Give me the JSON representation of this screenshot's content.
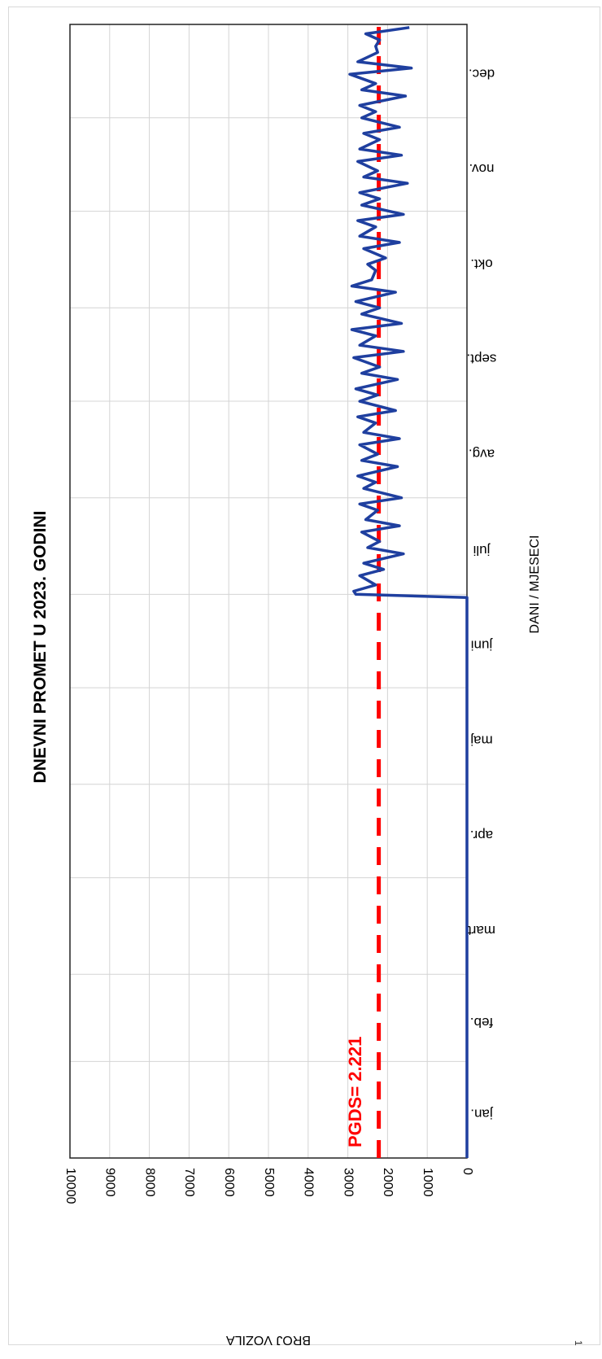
{
  "page": {
    "number": "1"
  },
  "chart_data": {
    "type": "line",
    "title": "DNEVNI PROMET U 2023. GODINI",
    "xlabel": "DANI / MJESECI",
    "ylabel": "BROJ VOZILA",
    "ylim": [
      0,
      10000
    ],
    "y_ticks": [
      "0",
      "1000",
      "2000",
      "3000",
      "4000",
      "5000",
      "6000",
      "7000",
      "8000",
      "9000",
      "10000"
    ],
    "x_ticks": [
      "jan.",
      "feb.",
      "mart",
      "apr.",
      "maj",
      "juni",
      "juli",
      "avg.",
      "sept.",
      "okt.",
      "nov.",
      "dec."
    ],
    "grid": true,
    "orientation": "page rotated 90 degrees clockwise",
    "reference_line": {
      "label": "PGDS= 2.221",
      "value": 2221,
      "color": "#ff0000",
      "style": "dashed"
    },
    "series": [
      {
        "color": "#1f3f9f",
        "x": [
          1,
          181,
          182,
          183,
          185,
          188,
          190,
          192,
          195,
          197,
          199,
          202,
          204,
          206,
          209,
          211,
          213,
          216,
          218,
          220,
          223,
          225,
          227,
          230,
          232,
          234,
          237,
          239,
          241,
          244,
          246,
          248,
          251,
          253,
          255,
          258,
          260,
          262,
          265,
          267,
          269,
          272,
          274,
          276,
          279,
          281,
          283,
          286,
          288,
          290,
          293,
          295,
          297,
          300,
          302,
          304,
          307,
          309,
          311,
          314,
          316,
          318,
          321,
          323,
          325,
          328,
          330,
          332,
          335,
          337,
          339,
          342,
          344,
          346,
          349,
          351,
          353,
          356,
          358,
          360,
          362,
          364
        ],
        "y": [
          0,
          0,
          2800,
          2850,
          2300,
          2700,
          2100,
          2600,
          1600,
          2500,
          2200,
          2650,
          1700,
          2550,
          2250,
          2700,
          1650,
          2600,
          2300,
          2750,
          1750,
          2650,
          2250,
          2700,
          1700,
          2600,
          2300,
          2750,
          1800,
          2700,
          2250,
          2800,
          1750,
          2650,
          2200,
          2850,
          1600,
          2700,
          2300,
          2900,
          1650,
          2650,
          2200,
          2800,
          1800,
          2900,
          2400,
          2300,
          2500,
          2050,
          2600,
          1700,
          2700,
          2300,
          2750,
          1600,
          2650,
          2200,
          2700,
          1500,
          2600,
          2250,
          2750,
          1650,
          2700,
          2200,
          2600,
          1700,
          2650,
          2300,
          2700,
          1550,
          2650,
          2300,
          2950,
          1400,
          2750,
          2250,
          2300,
          2200,
          2550,
          1450
        ]
      }
    ]
  }
}
